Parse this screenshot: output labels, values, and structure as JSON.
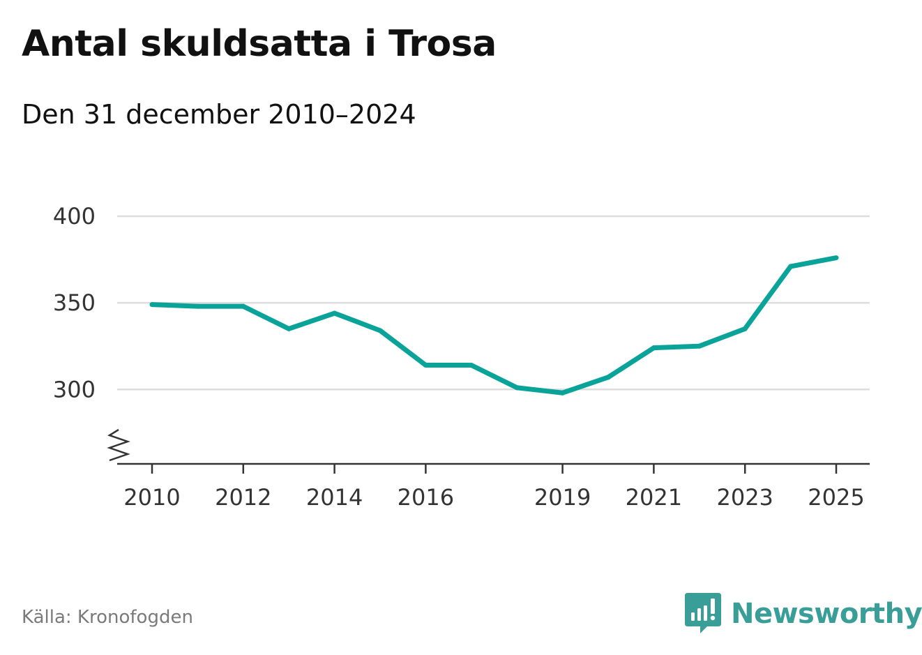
{
  "title": "Antal skuldsatta i Trosa",
  "subtitle": "Den 31 december 2010–2024",
  "source": "Källa: Kronofogden",
  "brand": {
    "name": "Newsworthy",
    "icon": "newsworthy-logo-icon",
    "color": "#3a9e98"
  },
  "chart_data": {
    "type": "line",
    "title": "Antal skuldsatta i Trosa",
    "subtitle": "Den 31 december 2010–2024",
    "xlabel": "",
    "ylabel": "",
    "x": [
      2010,
      2011,
      2012,
      2013,
      2014,
      2015,
      2016,
      2017,
      2018,
      2019,
      2020,
      2021,
      2022,
      2023,
      2024,
      2025
    ],
    "series": [
      {
        "values": [
          349,
          348,
          348,
          335,
          344,
          334,
          314,
          314,
          301,
          298,
          307,
          324,
          325,
          335,
          371,
          376
        ],
        "color": "#0aa39a"
      }
    ],
    "x_ticks": [
      "2010",
      "2012",
      "2014",
      "2016",
      "2019",
      "2021",
      "2023",
      "2025"
    ],
    "y_ticks": [
      "300",
      "350",
      "400"
    ],
    "ylim": [
      257,
      400
    ],
    "xlim": [
      2010,
      2025
    ],
    "grid": true,
    "y_axis_break": true,
    "gridline_color": "#dddddd",
    "axis_color": "#333333"
  }
}
